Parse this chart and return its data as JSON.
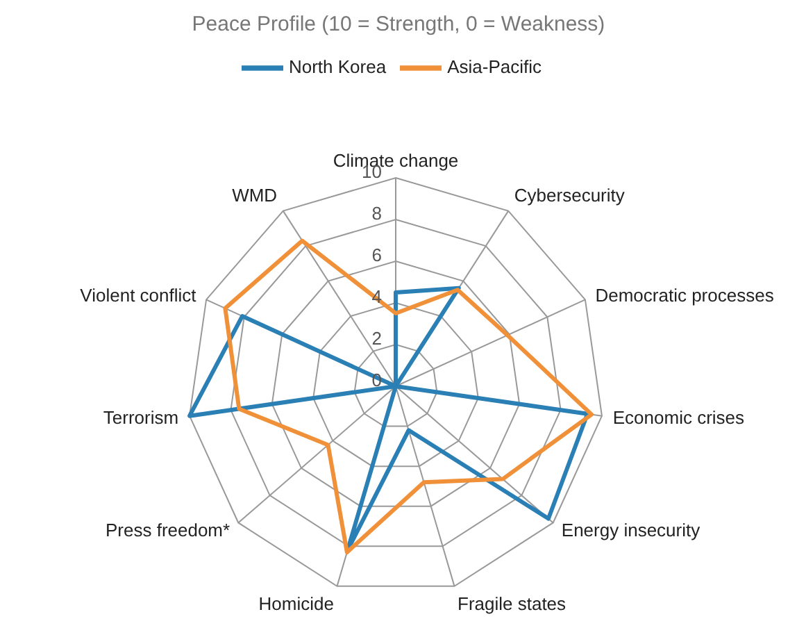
{
  "chart_data": {
    "type": "radar",
    "title": "Peace Profile (10 = Strength, 0 = Weakness)",
    "categories": [
      "Climate change",
      "Cybersecurity",
      "Democratic processes",
      "Economic crises",
      "Energy insecurity",
      "Fragile states",
      "Homicide",
      "Press freedom*",
      "Terrorism",
      "Violent conflict",
      "WMD"
    ],
    "series": [
      {
        "name": "North Korea",
        "color": "#2a7fb5",
        "values": [
          4.5,
          5.6,
          0,
          9.3,
          9.7,
          2.2,
          8.2,
          0,
          10,
          8.1,
          0
        ]
      },
      {
        "name": "Asia-Pacific",
        "color": "#f0913a",
        "values": [
          3.5,
          5.5,
          5.9,
          9.5,
          6.8,
          4.8,
          8.3,
          4.3,
          7.6,
          9.0,
          8.3
        ]
      }
    ],
    "ylim": [
      0,
      10
    ],
    "yticks": [
      0,
      2,
      4,
      6,
      8,
      10
    ],
    "grid": true,
    "legend": "top",
    "marker": "none"
  }
}
